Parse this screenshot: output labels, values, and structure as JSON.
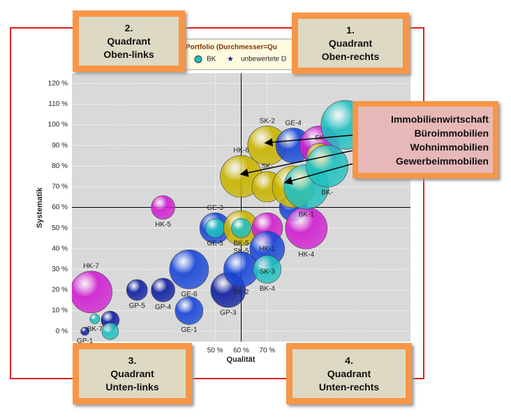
{
  "chart_data": {
    "type": "bubble",
    "title": "Portfolio (Durchmesser=Qu",
    "legend": [
      {
        "label": "BK",
        "color": "#20c0c0"
      },
      {
        "label": "unbewertete D",
        "color": "#1a2a80"
      }
    ],
    "xlabel": "Qualität",
    "ylabel": "Systematik",
    "xlim": [
      -5,
      125
    ],
    "ylim": [
      -5,
      125
    ],
    "xticks": [
      {
        "value": 50,
        "label": "50 %"
      },
      {
        "value": 60,
        "label": "60 %"
      },
      {
        "value": 70,
        "label": "70 %"
      }
    ],
    "yticks": [
      {
        "value": 0,
        "label": "0 %"
      },
      {
        "value": 10,
        "label": "10 %"
      },
      {
        "value": 20,
        "label": "20 %"
      },
      {
        "value": 30,
        "label": "30 %"
      },
      {
        "value": 40,
        "label": "40 %"
      },
      {
        "value": 50,
        "label": "50 %"
      },
      {
        "value": 60,
        "label": "60 %"
      },
      {
        "value": 70,
        "label": "70 %"
      },
      {
        "value": 80,
        "label": "80 %"
      },
      {
        "value": 90,
        "label": "90 %"
      },
      {
        "value": 100,
        "label": "100 %"
      },
      {
        "value": 110,
        "label": "110 %"
      },
      {
        "value": 120,
        "label": "120 %"
      }
    ],
    "reference_lines": {
      "x": 60,
      "y": 60
    },
    "points": [
      {
        "label": "HK-7",
        "x": 2.4,
        "y": 19,
        "size": 30,
        "color": "#d020d0"
      },
      {
        "label": "BK-7",
        "x": 3.8,
        "y": 6,
        "size": 7,
        "color": "#20c0c0"
      },
      {
        "label": "GP-1",
        "x": 0,
        "y": 0,
        "size": 6,
        "color": "#1020a0"
      },
      {
        "label": null,
        "x": 9.7,
        "y": 5.4,
        "size": 13,
        "color": "#1020a0"
      },
      {
        "label": null,
        "x": 9.7,
        "y": 0,
        "size": 12,
        "color": "#20c0c0"
      },
      {
        "label": "GP-5",
        "x": 20,
        "y": 20,
        "size": 15,
        "color": "#1020a0"
      },
      {
        "label": "GP-4",
        "x": 30,
        "y": 20,
        "size": 17,
        "color": "#1020a0"
      },
      {
        "label": "GE-6",
        "x": 40,
        "y": 30,
        "size": 28,
        "color": "#1a48d8"
      },
      {
        "label": "GE-1",
        "x": 40,
        "y": 10,
        "size": 20,
        "color": "#1a48d8"
      },
      {
        "label": "HK-5",
        "x": 30,
        "y": 60,
        "size": 17,
        "color": "#d020d0"
      },
      {
        "label": "GE-3",
        "x": 50,
        "y": 50,
        "size": 22,
        "color": "#1a48d8"
      },
      {
        "label": "GE-5",
        "x": 50,
        "y": 50,
        "size": 14,
        "color": "#20c0c0"
      },
      {
        "label": "GP-3",
        "x": 55,
        "y": 20,
        "size": 25,
        "color": "#1020a0"
      },
      {
        "label": "BK-2",
        "x": 60,
        "y": 30,
        "size": 25,
        "color": "#1a48d8"
      },
      {
        "label": "SK-5",
        "x": 60,
        "y": 50,
        "size": 25,
        "color": "#c8b400"
      },
      {
        "label": "BK-5",
        "x": 60,
        "y": 50,
        "size": 14,
        "color": "#20c0c0"
      },
      {
        "label": "HK-6",
        "x": 60,
        "y": 75,
        "size": 30,
        "color": "#c8b400"
      },
      {
        "label": "HK-1",
        "x": 70,
        "y": 50,
        "size": 22,
        "color": "#d020d0"
      },
      {
        "label": "SK-3",
        "x": 70,
        "y": 40,
        "size": 25,
        "color": "#1a48d8"
      },
      {
        "label": "BK-4",
        "x": 70,
        "y": 30,
        "size": 20,
        "color": "#20c0c0"
      },
      {
        "label": "SK-2",
        "x": 70,
        "y": 90,
        "size": 28,
        "color": "#c8b400"
      },
      {
        "label": "SK-",
        "x": 70,
        "y": 70,
        "size": 22,
        "color": "#c8b400"
      },
      {
        "label": "GE-4",
        "x": 80,
        "y": 90,
        "size": 25,
        "color": "#1a48d8"
      },
      {
        "label": null,
        "x": 80,
        "y": 60,
        "size": 20,
        "color": "#1a48d8"
      },
      {
        "label": null,
        "x": 80,
        "y": 70,
        "size": 30,
        "color": "#c8b400"
      },
      {
        "label": "HK-4",
        "x": 85,
        "y": 50,
        "size": 30,
        "color": "#d020d0"
      },
      {
        "label": "BK-1",
        "x": 85,
        "y": 70,
        "size": 32,
        "color": "#20c0c0"
      },
      {
        "label": null,
        "x": 90,
        "y": 90,
        "size": 28,
        "color": "#d020d0"
      },
      {
        "label": "SK",
        "x": 90,
        "y": 85,
        "size": 18,
        "color": "#c8b400"
      },
      {
        "label": "BK-",
        "x": 93,
        "y": 80,
        "size": 30,
        "color": "#20c0c0"
      },
      {
        "label": null,
        "x": 100,
        "y": 100,
        "size": 35,
        "color": "#20c0c0"
      }
    ]
  },
  "quadrants": [
    {
      "number": "2.",
      "line1": "Quadrant",
      "line2": "Oben-links"
    },
    {
      "number": "1.",
      "line1": "Quadrant",
      "line2": "Oben-rechts"
    },
    {
      "number": "3.",
      "line1": "Quadrant",
      "line2": "Unten-links"
    },
    {
      "number": "4.",
      "line1": "Quadrant",
      "line2": "Unten-rechts"
    }
  ],
  "annotation": {
    "lines": [
      "Immobilienwirtschaft",
      "Büroimmobilien",
      "Wohnimmobilien",
      "Gewerbeimmobilien"
    ]
  }
}
